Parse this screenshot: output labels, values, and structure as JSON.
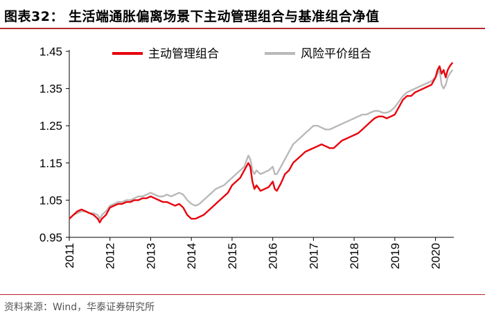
{
  "title": "图表32：  生活端通胀偏离场景下主动管理组合与基准组合净值",
  "source": "资料来源：Wind，华泰证券研究所",
  "colors": {
    "active": "#e8000b",
    "benchmark": "#b9b9b9",
    "accent": "#b4272d"
  },
  "chart_data": {
    "type": "line",
    "title": "生活端通胀偏离场景下主动管理组合与基准组合净值",
    "xlabel": "",
    "ylabel": "",
    "xlim": [
      2011.0,
      2020.45
    ],
    "ylim": [
      0.95,
      1.45
    ],
    "y_ticks": [
      "0.95",
      "1.05",
      "1.15",
      "1.25",
      "1.35",
      "1.45"
    ],
    "x_ticks": [
      "2011",
      "2012",
      "2013",
      "2014",
      "2015",
      "2016",
      "2017",
      "2018",
      "2019",
      "2020"
    ],
    "grid": false,
    "legend_position": "top",
    "series": [
      {
        "name": "主动管理组合",
        "color": "#e8000b",
        "points": [
          [
            2011.0,
            1.0
          ],
          [
            2011.1,
            1.01
          ],
          [
            2011.2,
            1.02
          ],
          [
            2011.3,
            1.025
          ],
          [
            2011.4,
            1.02
          ],
          [
            2011.5,
            1.015
          ],
          [
            2011.6,
            1.01
          ],
          [
            2011.7,
            1.0
          ],
          [
            2011.75,
            0.99
          ],
          [
            2011.8,
            1.0
          ],
          [
            2011.9,
            1.01
          ],
          [
            2012.0,
            1.03
          ],
          [
            2012.1,
            1.035
          ],
          [
            2012.2,
            1.04
          ],
          [
            2012.3,
            1.04
          ],
          [
            2012.4,
            1.045
          ],
          [
            2012.5,
            1.045
          ],
          [
            2012.6,
            1.05
          ],
          [
            2012.7,
            1.05
          ],
          [
            2012.8,
            1.055
          ],
          [
            2012.9,
            1.055
          ],
          [
            2013.0,
            1.06
          ],
          [
            2013.1,
            1.055
          ],
          [
            2013.2,
            1.05
          ],
          [
            2013.3,
            1.045
          ],
          [
            2013.4,
            1.045
          ],
          [
            2013.5,
            1.04
          ],
          [
            2013.6,
            1.035
          ],
          [
            2013.7,
            1.04
          ],
          [
            2013.8,
            1.03
          ],
          [
            2013.9,
            1.01
          ],
          [
            2014.0,
            1.0
          ],
          [
            2014.1,
            1.0
          ],
          [
            2014.2,
            1.005
          ],
          [
            2014.3,
            1.01
          ],
          [
            2014.4,
            1.02
          ],
          [
            2014.5,
            1.03
          ],
          [
            2014.6,
            1.04
          ],
          [
            2014.7,
            1.05
          ],
          [
            2014.8,
            1.06
          ],
          [
            2014.9,
            1.07
          ],
          [
            2015.0,
            1.09
          ],
          [
            2015.1,
            1.1
          ],
          [
            2015.2,
            1.11
          ],
          [
            2015.3,
            1.13
          ],
          [
            2015.4,
            1.15
          ],
          [
            2015.45,
            1.14
          ],
          [
            2015.5,
            1.1
          ],
          [
            2015.55,
            1.08
          ],
          [
            2015.6,
            1.09
          ],
          [
            2015.7,
            1.075
          ],
          [
            2015.8,
            1.08
          ],
          [
            2015.9,
            1.085
          ],
          [
            2016.0,
            1.1
          ],
          [
            2016.05,
            1.08
          ],
          [
            2016.1,
            1.075
          ],
          [
            2016.2,
            1.095
          ],
          [
            2016.3,
            1.12
          ],
          [
            2016.4,
            1.13
          ],
          [
            2016.5,
            1.15
          ],
          [
            2016.6,
            1.16
          ],
          [
            2016.7,
            1.17
          ],
          [
            2016.8,
            1.18
          ],
          [
            2016.9,
            1.185
          ],
          [
            2017.0,
            1.19
          ],
          [
            2017.1,
            1.195
          ],
          [
            2017.2,
            1.2
          ],
          [
            2017.3,
            1.195
          ],
          [
            2017.4,
            1.19
          ],
          [
            2017.5,
            1.19
          ],
          [
            2017.6,
            1.2
          ],
          [
            2017.7,
            1.21
          ],
          [
            2017.8,
            1.215
          ],
          [
            2017.9,
            1.22
          ],
          [
            2018.0,
            1.225
          ],
          [
            2018.1,
            1.23
          ],
          [
            2018.2,
            1.24
          ],
          [
            2018.3,
            1.25
          ],
          [
            2018.4,
            1.26
          ],
          [
            2018.5,
            1.27
          ],
          [
            2018.6,
            1.275
          ],
          [
            2018.7,
            1.275
          ],
          [
            2018.8,
            1.27
          ],
          [
            2018.9,
            1.275
          ],
          [
            2019.0,
            1.28
          ],
          [
            2019.1,
            1.3
          ],
          [
            2019.2,
            1.32
          ],
          [
            2019.3,
            1.33
          ],
          [
            2019.4,
            1.33
          ],
          [
            2019.5,
            1.34
          ],
          [
            2019.6,
            1.345
          ],
          [
            2019.7,
            1.35
          ],
          [
            2019.8,
            1.355
          ],
          [
            2019.9,
            1.36
          ],
          [
            2020.0,
            1.38
          ],
          [
            2020.05,
            1.4
          ],
          [
            2020.1,
            1.41
          ],
          [
            2020.15,
            1.39
          ],
          [
            2020.2,
            1.4
          ],
          [
            2020.25,
            1.38
          ],
          [
            2020.3,
            1.4
          ],
          [
            2020.35,
            1.41
          ],
          [
            2020.42,
            1.42
          ]
        ]
      },
      {
        "name": "风险平价组合",
        "color": "#b9b9b9",
        "points": [
          [
            2011.0,
            1.0
          ],
          [
            2011.1,
            1.01
          ],
          [
            2011.2,
            1.015
          ],
          [
            2011.3,
            1.02
          ],
          [
            2011.4,
            1.02
          ],
          [
            2011.5,
            1.015
          ],
          [
            2011.6,
            1.015
          ],
          [
            2011.7,
            1.01
          ],
          [
            2011.75,
            1.0
          ],
          [
            2011.8,
            1.01
          ],
          [
            2011.9,
            1.02
          ],
          [
            2012.0,
            1.035
          ],
          [
            2012.1,
            1.04
          ],
          [
            2012.2,
            1.045
          ],
          [
            2012.3,
            1.045
          ],
          [
            2012.4,
            1.05
          ],
          [
            2012.5,
            1.05
          ],
          [
            2012.6,
            1.055
          ],
          [
            2012.7,
            1.06
          ],
          [
            2012.8,
            1.06
          ],
          [
            2012.9,
            1.065
          ],
          [
            2013.0,
            1.07
          ],
          [
            2013.1,
            1.065
          ],
          [
            2013.2,
            1.06
          ],
          [
            2013.3,
            1.06
          ],
          [
            2013.4,
            1.065
          ],
          [
            2013.5,
            1.06
          ],
          [
            2013.6,
            1.065
          ],
          [
            2013.7,
            1.07
          ],
          [
            2013.8,
            1.065
          ],
          [
            2013.9,
            1.05
          ],
          [
            2014.0,
            1.04
          ],
          [
            2014.1,
            1.035
          ],
          [
            2014.2,
            1.04
          ],
          [
            2014.3,
            1.05
          ],
          [
            2014.4,
            1.06
          ],
          [
            2014.5,
            1.07
          ],
          [
            2014.6,
            1.08
          ],
          [
            2014.7,
            1.085
          ],
          [
            2014.8,
            1.09
          ],
          [
            2014.9,
            1.1
          ],
          [
            2015.0,
            1.11
          ],
          [
            2015.1,
            1.12
          ],
          [
            2015.2,
            1.13
          ],
          [
            2015.3,
            1.14
          ],
          [
            2015.4,
            1.17
          ],
          [
            2015.45,
            1.16
          ],
          [
            2015.5,
            1.13
          ],
          [
            2015.55,
            1.12
          ],
          [
            2015.6,
            1.13
          ],
          [
            2015.7,
            1.12
          ],
          [
            2015.8,
            1.125
          ],
          [
            2015.9,
            1.13
          ],
          [
            2016.0,
            1.14
          ],
          [
            2016.05,
            1.12
          ],
          [
            2016.1,
            1.12
          ],
          [
            2016.2,
            1.14
          ],
          [
            2016.3,
            1.16
          ],
          [
            2016.4,
            1.18
          ],
          [
            2016.5,
            1.2
          ],
          [
            2016.6,
            1.21
          ],
          [
            2016.7,
            1.22
          ],
          [
            2016.8,
            1.23
          ],
          [
            2016.9,
            1.24
          ],
          [
            2017.0,
            1.25
          ],
          [
            2017.1,
            1.25
          ],
          [
            2017.2,
            1.245
          ],
          [
            2017.3,
            1.24
          ],
          [
            2017.4,
            1.24
          ],
          [
            2017.5,
            1.245
          ],
          [
            2017.6,
            1.25
          ],
          [
            2017.7,
            1.255
          ],
          [
            2017.8,
            1.26
          ],
          [
            2017.9,
            1.265
          ],
          [
            2018.0,
            1.27
          ],
          [
            2018.1,
            1.275
          ],
          [
            2018.2,
            1.28
          ],
          [
            2018.3,
            1.28
          ],
          [
            2018.4,
            1.285
          ],
          [
            2018.5,
            1.29
          ],
          [
            2018.6,
            1.29
          ],
          [
            2018.7,
            1.285
          ],
          [
            2018.8,
            1.285
          ],
          [
            2018.9,
            1.29
          ],
          [
            2019.0,
            1.3
          ],
          [
            2019.1,
            1.315
          ],
          [
            2019.2,
            1.33
          ],
          [
            2019.3,
            1.34
          ],
          [
            2019.4,
            1.345
          ],
          [
            2019.5,
            1.35
          ],
          [
            2019.6,
            1.355
          ],
          [
            2019.7,
            1.36
          ],
          [
            2019.8,
            1.365
          ],
          [
            2019.9,
            1.37
          ],
          [
            2020.0,
            1.38
          ],
          [
            2020.05,
            1.39
          ],
          [
            2020.1,
            1.4
          ],
          [
            2020.15,
            1.36
          ],
          [
            2020.2,
            1.35
          ],
          [
            2020.25,
            1.36
          ],
          [
            2020.3,
            1.38
          ],
          [
            2020.35,
            1.39
          ],
          [
            2020.42,
            1.4
          ]
        ]
      }
    ]
  }
}
